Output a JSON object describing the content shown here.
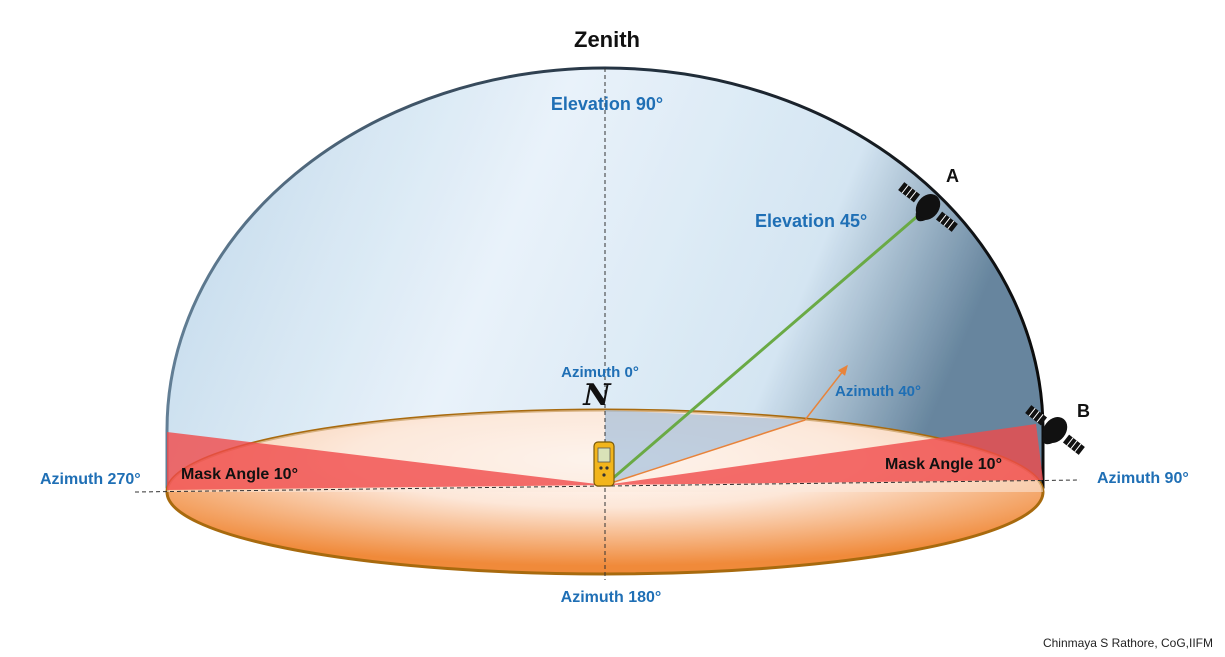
{
  "title": "Zenith",
  "labels": {
    "elevation_90": "Elevation 90°",
    "elevation_45": "Elevation 45°",
    "azimuth_0": "Azimuth  0°",
    "azimuth_40": "Azimuth 40°",
    "azimuth_90": "Azimuth 90°",
    "azimuth_180": "Azimuth 180°",
    "azimuth_270": "Azimuth 270°",
    "mask_left": "Mask Angle 10°",
    "mask_right": "Mask Angle 10°",
    "north_symbol": "N"
  },
  "satellites": [
    {
      "name": "A",
      "elevation_deg": 45,
      "azimuth_deg": 40
    },
    {
      "name": "B"
    }
  ],
  "mask_angle_deg": 10,
  "credit": "Chinmaya S Rathore, CoG,IIFM",
  "colors": {
    "label_blue": "#1f6fb5",
    "elevation_line": "#6aaa45",
    "azimuth_arrow": "#e8833a",
    "mask_red": "#f04a4a",
    "disk_rim": "#a86a0e",
    "dome_fill": "#d6e8f5"
  }
}
